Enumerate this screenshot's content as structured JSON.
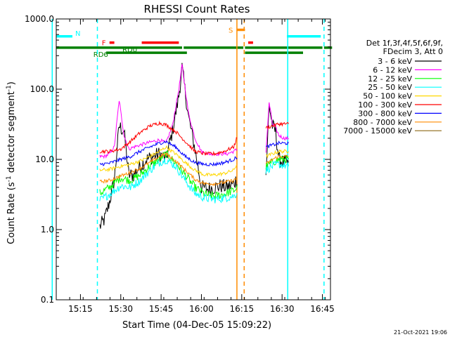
{
  "chart_data": {
    "type": "line",
    "title": "RHESSI Count Rates",
    "xlabel": "Start Time (04-Dec-05 15:09:22)",
    "ylabel_main": "Count Rate (s",
    "ylabel_sup1": "-1",
    "ylabel_mid": " detector segment",
    "ylabel_sup2": "-1",
    "ylabel_end": ")",
    "y_scale": "log",
    "ylim": [
      0.1,
      1000
    ],
    "xlim_minutes": [
      15.1,
      16.8
    ],
    "y_ticks": [
      {
        "v": 0.1,
        "label": "0.1"
      },
      {
        "v": 1,
        "label": "1.0"
      },
      {
        "v": 10,
        "label": "10.0"
      },
      {
        "v": 100,
        "label": "100.0"
      },
      {
        "v": 1000,
        "label": "1000.0"
      }
    ],
    "x_ticks": [
      {
        "v": 15.25,
        "label": "15:15"
      },
      {
        "v": 15.5,
        "label": "15:30"
      },
      {
        "v": 15.75,
        "label": "15:45"
      },
      {
        "v": 16.0,
        "label": "16:00"
      },
      {
        "v": 16.25,
        "label": "16:15"
      },
      {
        "v": 16.5,
        "label": "16:30"
      },
      {
        "v": 16.75,
        "label": "16:45"
      }
    ],
    "legend_header": [
      "Det 1f,3f,4f,5f,6f,9f,",
      "FDecim 3, Att 0"
    ],
    "series": [
      {
        "name": "3 - 6 keV",
        "color": "#000000",
        "x": [
          15.37,
          15.4,
          15.43,
          15.46,
          15.49,
          15.52,
          15.55,
          15.58,
          15.62,
          15.66,
          15.7,
          15.74,
          15.78,
          15.82,
          15.86,
          15.88,
          15.92,
          15.96,
          16.0,
          16.04,
          16.08,
          16.12,
          16.16,
          16.2,
          16.225,
          16.4,
          16.42,
          16.44,
          16.46,
          16.48,
          16.51,
          16.54
        ],
        "y": [
          1.1,
          1.4,
          2.5,
          5,
          30,
          25,
          6,
          6,
          8,
          10,
          11,
          12,
          10,
          25,
          80,
          200,
          40,
          14,
          4,
          3.8,
          4,
          4.2,
          4,
          4.5,
          5.5,
          6,
          60,
          30,
          25,
          10,
          9,
          9
        ]
      },
      {
        "name": "6 - 12 keV",
        "color": "#ff00ff",
        "x": [
          15.37,
          15.4,
          15.43,
          15.46,
          15.49,
          15.52,
          15.55,
          15.58,
          15.62,
          15.66,
          15.7,
          15.74,
          15.78,
          15.82,
          15.86,
          15.88,
          15.92,
          15.96,
          16.0,
          16.04,
          16.08,
          16.12,
          16.16,
          16.2,
          16.225,
          16.4,
          16.42,
          16.44,
          16.46,
          16.48,
          16.51,
          16.54
        ],
        "y": [
          11,
          11,
          12,
          15,
          70,
          22,
          14,
          15,
          16,
          17,
          18,
          19,
          17,
          30,
          100,
          220,
          45,
          20,
          13,
          12,
          12,
          12,
          12,
          13,
          14,
          13,
          65,
          32,
          28,
          22,
          20,
          20
        ]
      },
      {
        "name": "12 - 25 keV",
        "color": "#00ff00",
        "x": [
          15.37,
          15.43,
          15.5,
          15.56,
          15.62,
          15.68,
          15.74,
          15.78,
          15.84,
          15.9,
          15.96,
          16.02,
          16.08,
          16.14,
          16.2,
          16.225,
          16.4,
          16.44,
          16.48,
          16.54
        ],
        "y": [
          3.3,
          4,
          5.5,
          5,
          6,
          8,
          10,
          12,
          9,
          6,
          4,
          3.2,
          3,
          3.2,
          3.6,
          4,
          8,
          9,
          10,
          10
        ]
      },
      {
        "name": "25 - 50 keV",
        "color": "#00ffff",
        "x": [
          15.37,
          15.43,
          15.5,
          15.56,
          15.62,
          15.68,
          15.74,
          15.78,
          15.84,
          15.9,
          15.96,
          16.02,
          16.08,
          16.14,
          16.2,
          16.225,
          16.4,
          16.44,
          16.48,
          16.54
        ],
        "y": [
          2.6,
          3.2,
          4.2,
          4,
          5,
          7,
          9,
          10,
          8,
          5,
          3.3,
          2.8,
          2.7,
          2.8,
          3,
          3.4,
          7,
          8,
          8.5,
          8
        ]
      },
      {
        "name": "50 - 100 keV",
        "color": "#ffd700",
        "x": [
          15.37,
          15.43,
          15.5,
          15.56,
          15.62,
          15.68,
          15.74,
          15.78,
          15.84,
          15.9,
          15.96,
          16.02,
          16.08,
          16.14,
          16.2,
          16.225,
          16.4,
          16.44,
          16.48,
          16.54
        ],
        "y": [
          7,
          7.2,
          8,
          8.5,
          9.5,
          11,
          13,
          15,
          12,
          9,
          7,
          6,
          6,
          6.3,
          7,
          9,
          11,
          12,
          13,
          13
        ]
      },
      {
        "name": "100 - 300 keV",
        "color": "#ff0000",
        "x": [
          15.37,
          15.43,
          15.5,
          15.56,
          15.62,
          15.68,
          15.74,
          15.78,
          15.84,
          15.9,
          15.96,
          16.02,
          16.08,
          16.14,
          16.2,
          16.225,
          16.4,
          16.44,
          16.48,
          16.54
        ],
        "y": [
          13,
          13,
          14,
          18,
          24,
          30,
          33,
          31,
          25,
          18,
          13,
          12,
          12,
          13,
          15,
          22,
          28,
          30,
          32,
          32
        ]
      },
      {
        "name": "300 - 800 keV",
        "color": "#0000ff",
        "x": [
          15.37,
          15.43,
          15.5,
          15.56,
          15.62,
          15.68,
          15.74,
          15.78,
          15.84,
          15.9,
          15.96,
          16.02,
          16.08,
          16.14,
          16.2,
          16.225,
          16.4,
          16.44,
          16.48,
          16.54
        ],
        "y": [
          8.5,
          8.8,
          10,
          11,
          13,
          15,
          17,
          18,
          15,
          11,
          9,
          8.5,
          8.5,
          9,
          10,
          11,
          15,
          16,
          17,
          17
        ]
      },
      {
        "name": "800 - 7000 keV",
        "color": "#ff8c00",
        "x": [
          15.37,
          15.43,
          15.5,
          15.56,
          15.62,
          15.68,
          15.74,
          15.78,
          15.84,
          15.9,
          15.96,
          16.02,
          16.08,
          16.14,
          16.2,
          16.225,
          16.4,
          16.44,
          16.48,
          16.54
        ],
        "y": [
          4.8,
          5,
          5.8,
          6.5,
          7.5,
          9,
          11,
          12,
          9.5,
          7,
          5.2,
          4.5,
          4.5,
          4.7,
          5,
          5.5,
          8.5,
          10,
          11,
          11
        ]
      },
      {
        "name": "7000 - 15000 keV",
        "color": "#8b6914",
        "x": [],
        "y": []
      }
    ],
    "flags": [
      {
        "label": "N",
        "color": "#00ffff",
        "y": 565,
        "segments": [
          [
            15.1,
            15.2
          ],
          [
            16.53,
            16.74
          ]
        ]
      },
      {
        "label": "F",
        "color": "#ff0000",
        "y": 460,
        "segments": [
          [
            15.43,
            15.46
          ],
          [
            15.63,
            15.86
          ],
          [
            16.29,
            16.32
          ]
        ]
      },
      {
        "label": "S",
        "color": "#ff8c00",
        "y": 700,
        "segments": [
          [
            16.22,
            16.27
          ]
        ]
      },
      {
        "label": "RD0",
        "color": "#008000",
        "y": 390,
        "segments": [
          [
            15.1,
            15.88
          ],
          [
            15.89,
            16.26
          ],
          [
            16.27,
            16.75
          ],
          [
            16.76,
            16.81
          ]
        ]
      },
      {
        "label": "RD6",
        "color": "#008000",
        "y": 330,
        "segments": [
          [
            15.41,
            15.91
          ],
          [
            16.27,
            16.63
          ]
        ]
      }
    ],
    "vlines": [
      {
        "x": 15.075,
        "color": "#00ffff",
        "style": "solid"
      },
      {
        "x": 15.355,
        "color": "#00ffff",
        "style": "dashed"
      },
      {
        "x": 16.22,
        "color": "#ff8c00",
        "style": "solid"
      },
      {
        "x": 16.265,
        "color": "#ff8c00",
        "style": "dashed"
      },
      {
        "x": 16.535,
        "color": "#00ffff",
        "style": "solid"
      },
      {
        "x": 16.76,
        "color": "#00ffff",
        "style": "dashed"
      }
    ],
    "grid": false
  },
  "footer_date": "21-Oct-2021 19:06"
}
